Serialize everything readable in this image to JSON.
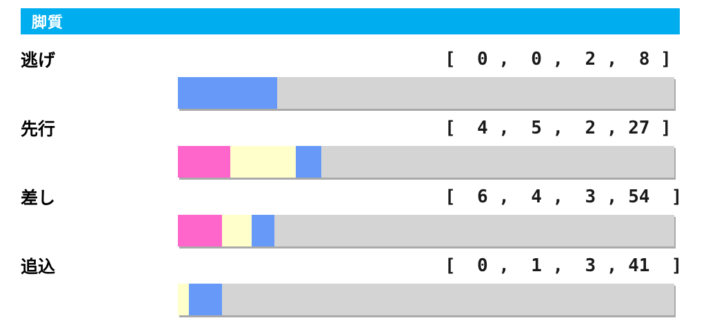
{
  "header": {
    "title": "脚質",
    "bg_color": "#00AEEF",
    "text_color": "#ffffff"
  },
  "colors": {
    "segments": [
      "#FF66CC",
      "#FFFFCC",
      "#6699F8",
      "#D4D4D4"
    ],
    "segment_names": [
      "pink",
      "cream",
      "blue",
      "gray"
    ],
    "shadow": "#a9a9a9"
  },
  "rows": [
    {
      "label": "逃げ",
      "values": [
        0,
        0,
        2,
        8
      ],
      "display": "[  0 ,  0 ,  2 ,  8 ]"
    },
    {
      "label": "先行",
      "values": [
        4,
        5,
        2,
        27
      ],
      "display": "[  4 ,  5 ,  2 , 27 ]"
    },
    {
      "label": "差し",
      "values": [
        6,
        4,
        3,
        54
      ],
      "display": "[  6 ,  4 ,  3 , 54  ]"
    },
    {
      "label": "追込",
      "values": [
        0,
        1,
        3,
        41
      ],
      "display": "[  0 ,  1 ,  3 , 41  ]"
    }
  ],
  "chart_data": {
    "type": "bar",
    "stacked": true,
    "orientation": "horizontal",
    "normalized": true,
    "title": "脚質",
    "categories": [
      "逃げ",
      "先行",
      "差し",
      "追込"
    ],
    "series": [
      {
        "name": "pink-segment",
        "color": "#FF66CC",
        "values": [
          0,
          4,
          6,
          0
        ]
      },
      {
        "name": "cream-segment",
        "color": "#FFFFCC",
        "values": [
          0,
          5,
          4,
          1
        ]
      },
      {
        "name": "blue-segment",
        "color": "#6699F8",
        "values": [
          2,
          2,
          3,
          3
        ]
      },
      {
        "name": "gray-segment",
        "color": "#D4D4D4",
        "values": [
          8,
          27,
          54,
          41
        ]
      }
    ],
    "value_labels": [
      "[ 0 , 0 , 2 , 8 ]",
      "[ 4 , 5 , 2 , 27 ]",
      "[ 6 , 4 , 3 , 54 ]",
      "[ 0 , 1 , 3 , 41 ]"
    ],
    "legend": false,
    "grid": false
  }
}
